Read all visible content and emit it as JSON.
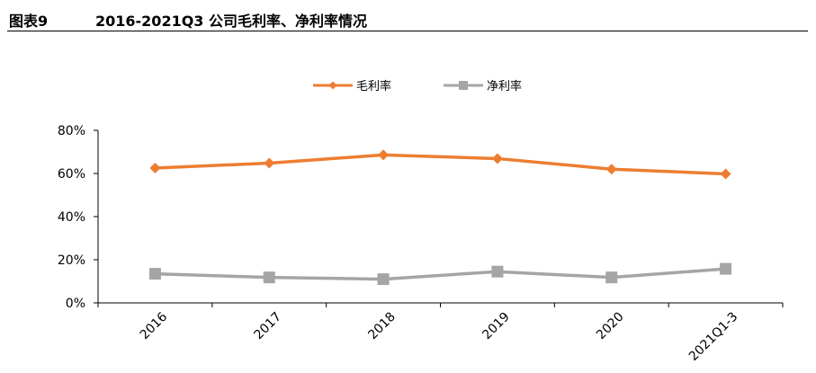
{
  "figure": {
    "number": "图表9",
    "title": "2016-2021Q3 公司毛利率、净利率情况"
  },
  "chart_data": {
    "type": "line",
    "categories": [
      "2016",
      "2017",
      "2018",
      "2019",
      "2020",
      "2021Q1-3"
    ],
    "series": [
      {
        "name": "毛利率",
        "values": [
          62.5,
          64.8,
          68.6,
          66.9,
          62.0,
          59.8
        ],
        "color": "#ED7D31",
        "marker": "diamond"
      },
      {
        "name": "净利率",
        "values": [
          13.5,
          11.8,
          11.0,
          14.5,
          11.8,
          15.8
        ],
        "color": "#A5A5A5",
        "marker": "square"
      }
    ],
    "y_ticks": [
      "0%",
      "20%",
      "40%",
      "60%",
      "80%"
    ],
    "ylim": [
      0,
      80
    ],
    "grid": false,
    "legend_position": "top-center",
    "title": "",
    "xlabel": "",
    "ylabel": ""
  }
}
